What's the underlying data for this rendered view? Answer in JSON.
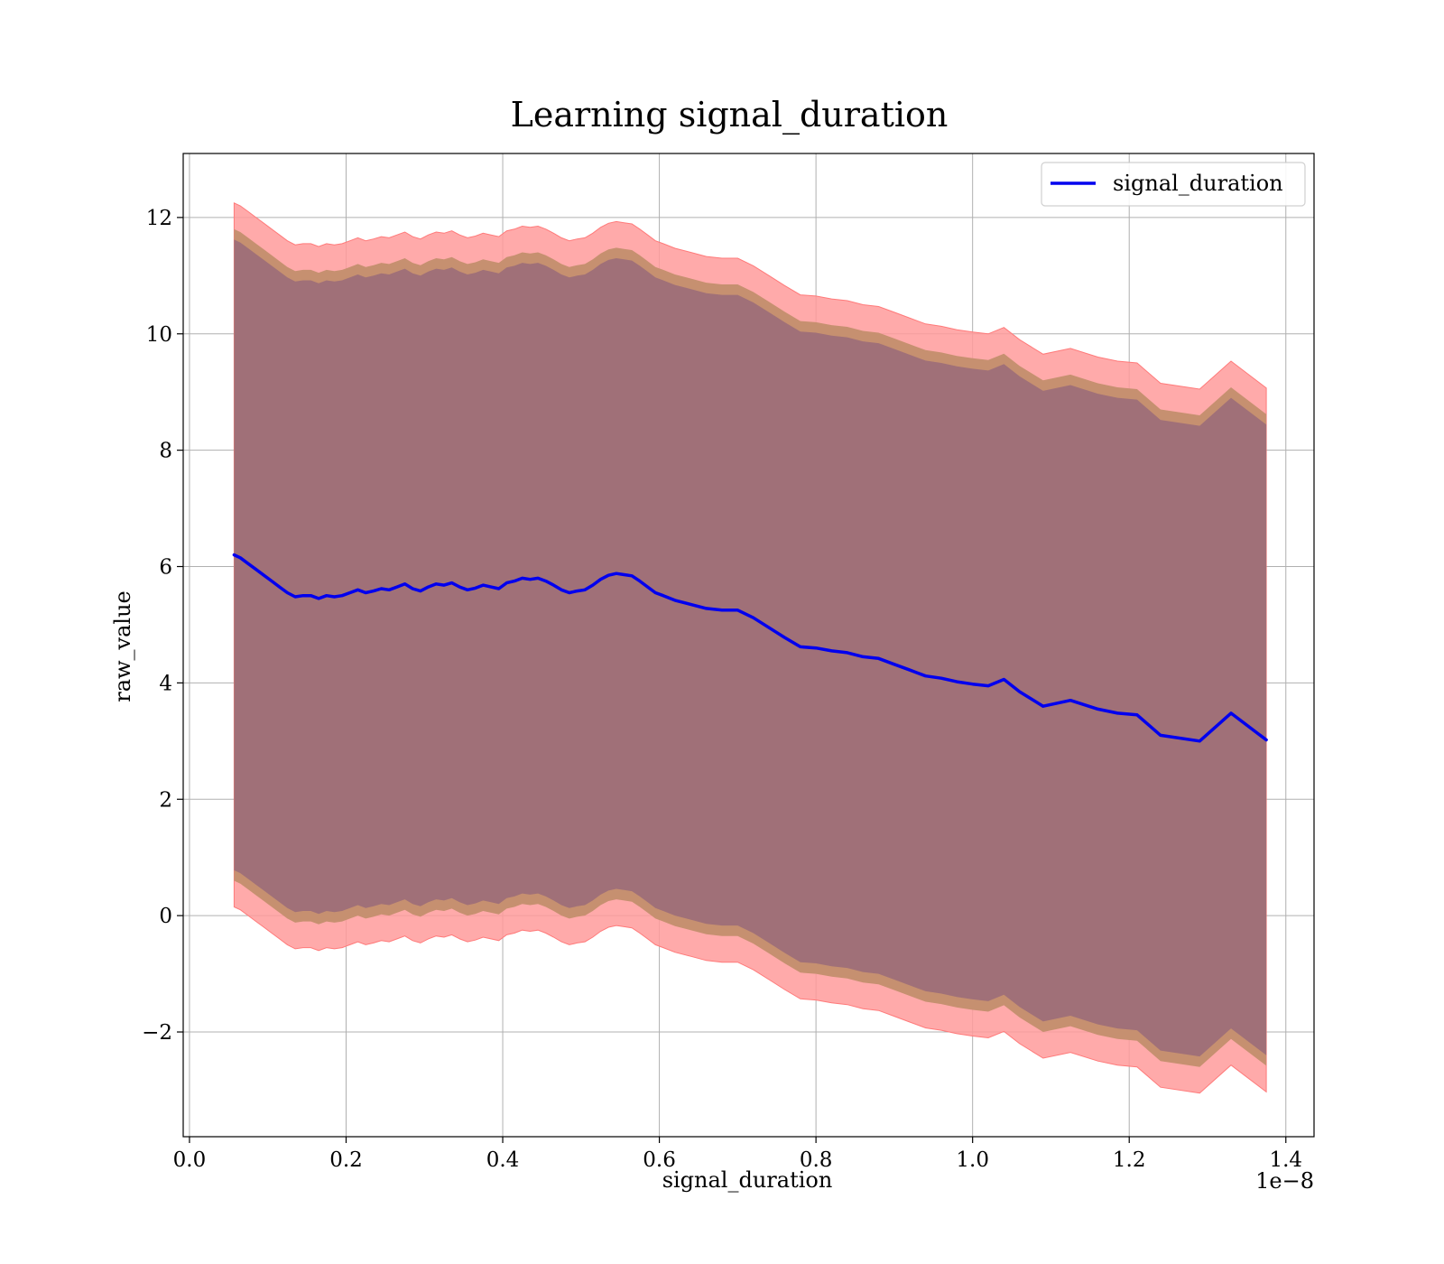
{
  "chart_data": {
    "type": "line",
    "title": "Learning signal_duration",
    "xlabel": "signal_duration",
    "ylabel": "raw_value",
    "x_offset_label": "1e−8",
    "xlim": [
      -0.008,
      1.436
    ],
    "ylim": [
      -3.8,
      13.1
    ],
    "xticks": [
      0.0,
      0.2,
      0.4,
      0.6,
      0.8,
      1.0,
      1.2,
      1.4
    ],
    "xtick_labels": [
      "0.0",
      "0.2",
      "0.4",
      "0.6",
      "0.8",
      "1.0",
      "1.2",
      "1.4"
    ],
    "yticks": [
      -2,
      0,
      2,
      4,
      6,
      8,
      10,
      12
    ],
    "ytick_labels": [
      "−2",
      "0",
      "2",
      "4",
      "6",
      "8",
      "10",
      "12"
    ],
    "grid": true,
    "legend": {
      "position": "top-right",
      "entries": [
        "signal_duration"
      ]
    },
    "colors": {
      "line": "#0000ee",
      "band_outer": "#ff9b9b",
      "band_middle": "#c69070",
      "band_inner": "#a07078",
      "grid": "#b0b0b0"
    },
    "series": [
      {
        "name": "signal_duration",
        "x": [
          0.057,
          0.065,
          0.075,
          0.085,
          0.095,
          0.105,
          0.115,
          0.125,
          0.135,
          0.145,
          0.155,
          0.165,
          0.175,
          0.185,
          0.195,
          0.205,
          0.215,
          0.225,
          0.235,
          0.245,
          0.255,
          0.265,
          0.275,
          0.285,
          0.295,
          0.305,
          0.315,
          0.325,
          0.335,
          0.345,
          0.355,
          0.365,
          0.375,
          0.385,
          0.395,
          0.405,
          0.415,
          0.425,
          0.435,
          0.445,
          0.455,
          0.465,
          0.475,
          0.485,
          0.495,
          0.505,
          0.515,
          0.525,
          0.535,
          0.545,
          0.555,
          0.565,
          0.575,
          0.585,
          0.595,
          0.605,
          0.62,
          0.64,
          0.66,
          0.68,
          0.7,
          0.72,
          0.74,
          0.76,
          0.78,
          0.8,
          0.82,
          0.84,
          0.86,
          0.88,
          0.9,
          0.92,
          0.94,
          0.96,
          0.98,
          1.0,
          1.02,
          1.04,
          1.06,
          1.09,
          1.125,
          1.16,
          1.185,
          1.21,
          1.24,
          1.29,
          1.33,
          1.375
        ],
        "y": [
          6.2,
          6.15,
          6.05,
          5.95,
          5.85,
          5.75,
          5.65,
          5.55,
          5.48,
          5.5,
          5.5,
          5.45,
          5.5,
          5.48,
          5.5,
          5.55,
          5.6,
          5.55,
          5.58,
          5.62,
          5.6,
          5.65,
          5.7,
          5.62,
          5.58,
          5.65,
          5.7,
          5.68,
          5.72,
          5.65,
          5.6,
          5.63,
          5.68,
          5.65,
          5.62,
          5.72,
          5.75,
          5.8,
          5.78,
          5.8,
          5.75,
          5.68,
          5.6,
          5.55,
          5.58,
          5.6,
          5.68,
          5.78,
          5.85,
          5.88,
          5.86,
          5.84,
          5.75,
          5.65,
          5.55,
          5.5,
          5.42,
          5.35,
          5.28,
          5.25,
          5.25,
          5.12,
          4.95,
          4.78,
          4.62,
          4.6,
          4.55,
          4.52,
          4.45,
          4.42,
          4.32,
          4.22,
          4.12,
          4.08,
          4.02,
          3.98,
          3.95,
          4.06,
          3.85,
          3.6,
          3.7,
          3.55,
          3.48,
          3.45,
          3.1,
          3.0,
          3.48,
          3.02
        ]
      }
    ],
    "bands": [
      {
        "label": "outer",
        "half_width": 6.05
      },
      {
        "label": "middle",
        "half_width": 5.6
      },
      {
        "label": "inner",
        "half_width": 5.42
      }
    ]
  }
}
